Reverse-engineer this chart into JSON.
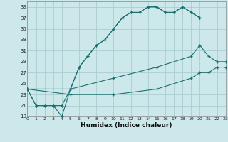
{
  "xlabel": "Humidex (Indice chaleur)",
  "bg_color": "#cce8eb",
  "grid_color": "#aacdd0",
  "line_color": "#1a7070",
  "xlim": [
    0,
    23
  ],
  "ylim": [
    19,
    40
  ],
  "xticks": [
    0,
    1,
    2,
    3,
    4,
    5,
    6,
    7,
    8,
    9,
    10,
    11,
    12,
    13,
    14,
    15,
    16,
    17,
    18,
    19,
    20,
    21,
    22,
    23
  ],
  "yticks": [
    19,
    21,
    23,
    25,
    27,
    29,
    31,
    33,
    35,
    37,
    39
  ],
  "series": [
    {
      "x": [
        0,
        1,
        2,
        3,
        4,
        5,
        6,
        7,
        8,
        9,
        10,
        11,
        12,
        13,
        14,
        15,
        16,
        17,
        18,
        19,
        20
      ],
      "y": [
        24,
        21,
        21,
        21,
        21,
        24,
        28,
        30,
        32,
        33,
        35,
        37,
        38,
        38,
        39,
        39,
        38,
        38,
        39,
        38,
        37
      ]
    },
    {
      "x": [
        0,
        1,
        2,
        3,
        4,
        5,
        6,
        7,
        8,
        9,
        10,
        11,
        12,
        13,
        14,
        15,
        16,
        17,
        18,
        19,
        20
      ],
      "y": [
        24,
        21,
        21,
        21,
        19,
        24,
        28,
        30,
        32,
        33,
        35,
        37,
        38,
        38,
        39,
        39,
        38,
        38,
        39,
        38,
        37
      ]
    },
    {
      "x": [
        0,
        5,
        10,
        15,
        19,
        20,
        21,
        22,
        23
      ],
      "y": [
        24,
        24,
        26,
        28,
        30,
        32,
        30,
        29,
        29
      ]
    },
    {
      "x": [
        0,
        5,
        10,
        15,
        19,
        20,
        21,
        22,
        23
      ],
      "y": [
        24,
        23,
        23,
        24,
        26,
        27,
        27,
        28,
        28
      ]
    }
  ]
}
